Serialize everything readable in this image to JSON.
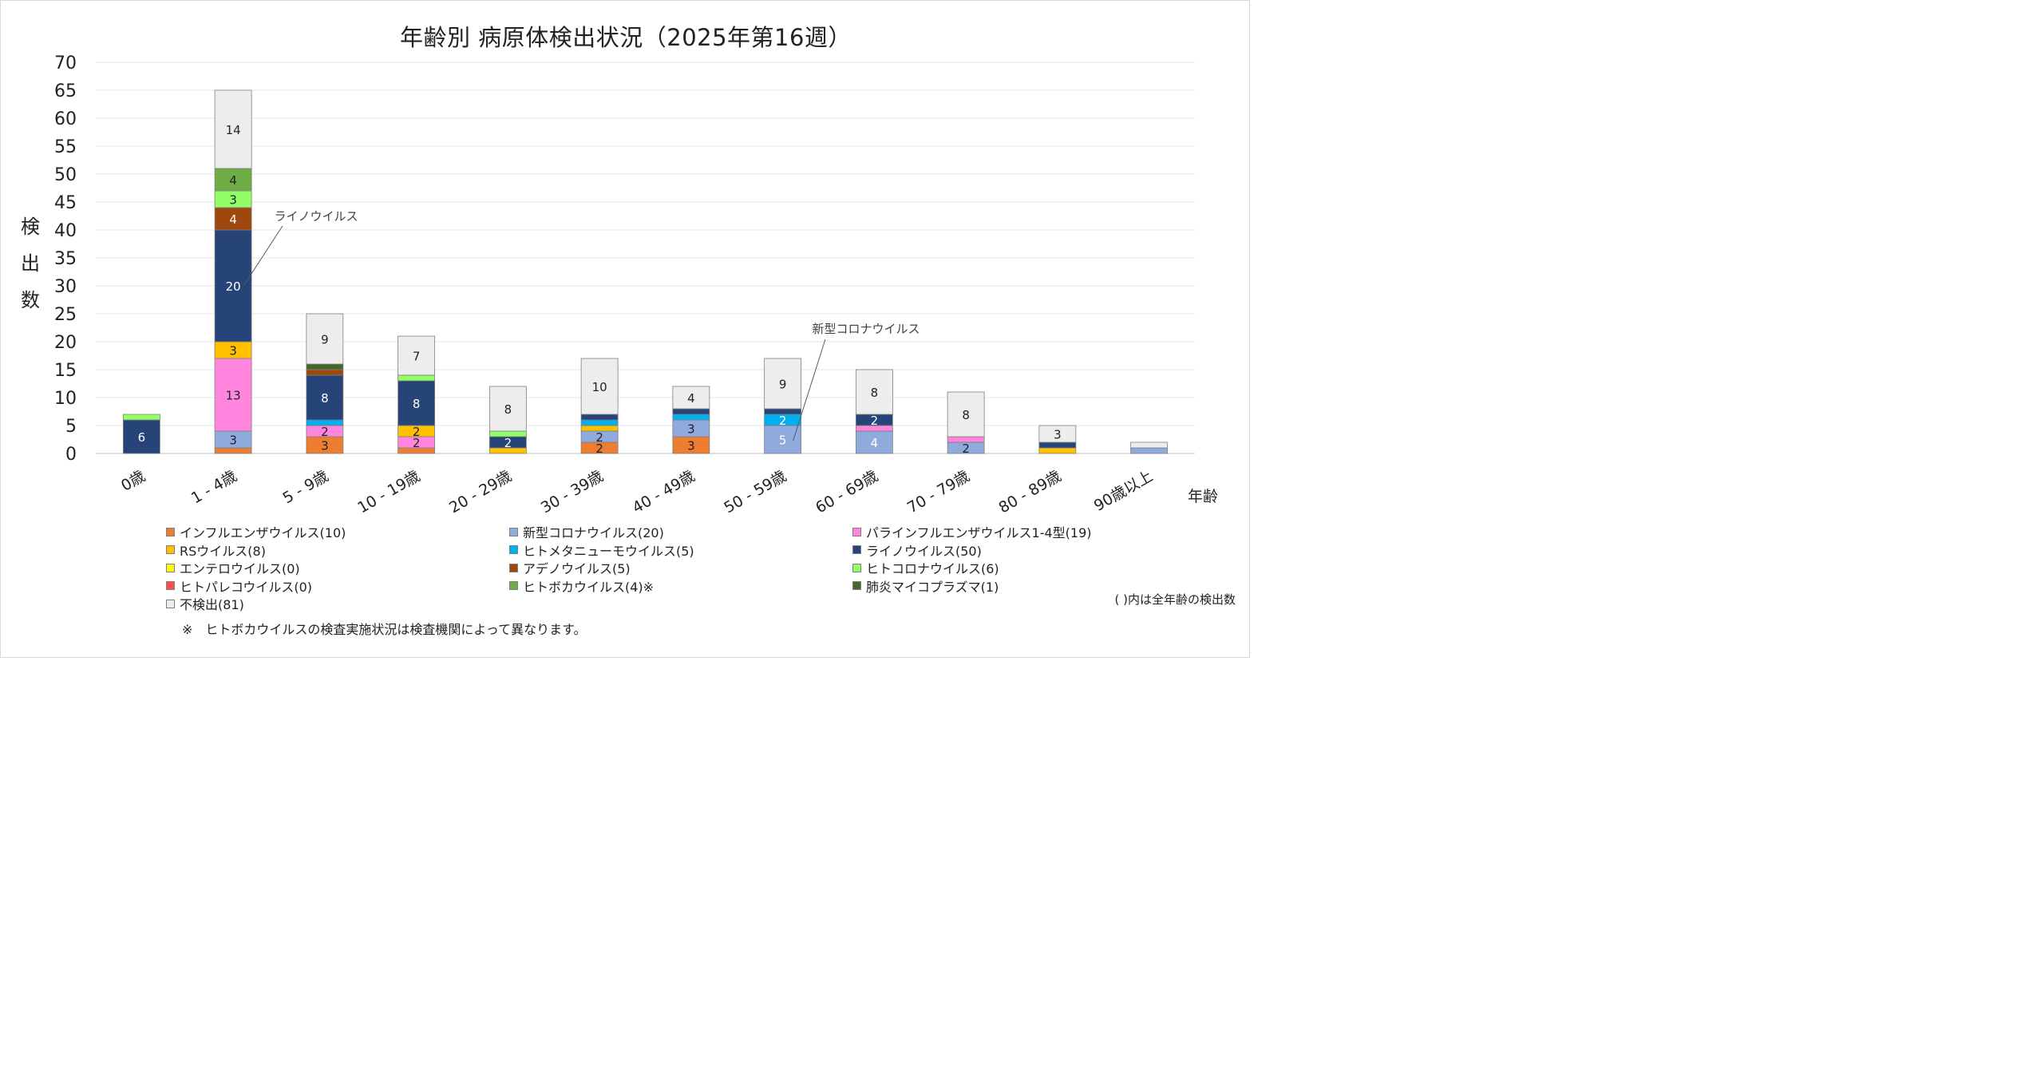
{
  "chart_data": {
    "type": "bar",
    "stacked": true,
    "title": "年齢別 病原体検出状況（2025年第16週）",
    "ylabel": "検出数",
    "xlabel": "年齢",
    "ylim": [
      0,
      70
    ],
    "ytick_step": 5,
    "grid": true,
    "legend_position": "bottom",
    "categories": [
      "0歳",
      "1 - 4歳",
      "5 - 9歳",
      "10 - 19歳",
      "20 - 29歳",
      "30 - 39歳",
      "40 - 49歳",
      "50 - 59歳",
      "60 - 69歳",
      "70 - 79歳",
      "80 - 89歳",
      "90歳以上"
    ],
    "series": [
      {
        "name": "インフルエンザウイルス(10)",
        "color": "#ED7D31",
        "values": [
          0,
          1,
          3,
          1,
          0,
          2,
          3,
          0,
          0,
          0,
          0,
          0
        ]
      },
      {
        "name": "新型コロナウイルス(20)",
        "color": "#8FAADC",
        "values": [
          0,
          3,
          0,
          0,
          0,
          2,
          3,
          5,
          4,
          2,
          0,
          1
        ]
      },
      {
        "name": "パラインフルエンザウイルス1-4型(19)",
        "color": "#FF85DE",
        "values": [
          0,
          13,
          2,
          2,
          0,
          0,
          0,
          0,
          1,
          1,
          0,
          0
        ]
      },
      {
        "name": "RSウイルス(8)",
        "color": "#FFC000",
        "values": [
          0,
          3,
          0,
          2,
          1,
          1,
          0,
          0,
          0,
          0,
          1,
          0
        ]
      },
      {
        "name": "ヒトメタニューモウイルス(5)",
        "color": "#00B0F0",
        "values": [
          0,
          0,
          1,
          0,
          0,
          1,
          1,
          2,
          0,
          0,
          0,
          0
        ]
      },
      {
        "name": "ライノウイルス(50)",
        "color": "#264478",
        "values": [
          6,
          20,
          8,
          8,
          2,
          1,
          1,
          1,
          2,
          0,
          1,
          0
        ]
      },
      {
        "name": "エンテロウイルス(0)",
        "color": "#FFFF00",
        "values": [
          0,
          0,
          0,
          0,
          0,
          0,
          0,
          0,
          0,
          0,
          0,
          0
        ]
      },
      {
        "name": "アデノウイルス(5)",
        "color": "#9E480E",
        "values": [
          0,
          4,
          1,
          0,
          0,
          0,
          0,
          0,
          0,
          0,
          0,
          0
        ]
      },
      {
        "name": "ヒトコロナウイルス(6)",
        "color": "#92FF66",
        "values": [
          1,
          3,
          0,
          1,
          1,
          0,
          0,
          0,
          0,
          0,
          0,
          0
        ]
      },
      {
        "name": "ヒトパレコウイルス(0)",
        "color": "#FF5050",
        "values": [
          0,
          0,
          0,
          0,
          0,
          0,
          0,
          0,
          0,
          0,
          0,
          0
        ]
      },
      {
        "name": "ヒトボカウイルス(4)※",
        "color": "#70AD47",
        "values": [
          0,
          4,
          0,
          0,
          0,
          0,
          0,
          0,
          0,
          0,
          0,
          0
        ]
      },
      {
        "name": "肺炎マイコプラズマ(1)",
        "color": "#43682B",
        "values": [
          0,
          0,
          1,
          0,
          0,
          0,
          0,
          0,
          0,
          0,
          0,
          0
        ]
      },
      {
        "name": "不検出(81)",
        "color": "#EDEDED",
        "values": [
          0,
          14,
          9,
          7,
          8,
          10,
          4,
          9,
          8,
          8,
          3,
          1
        ]
      }
    ],
    "data_labels": [
      {
        "series": 5,
        "category": 0,
        "text": "6",
        "color": "#ffffff"
      },
      {
        "series": 1,
        "category": 1,
        "text": "3",
        "color": "#222222"
      },
      {
        "series": 2,
        "category": 1,
        "text": "13",
        "color": "#222222"
      },
      {
        "series": 3,
        "category": 1,
        "text": "3",
        "color": "#222222"
      },
      {
        "series": 5,
        "category": 1,
        "text": "20",
        "color": "#ffffff"
      },
      {
        "series": 7,
        "category": 1,
        "text": "4",
        "color": "#ffffff"
      },
      {
        "series": 8,
        "category": 1,
        "text": "3",
        "color": "#222222"
      },
      {
        "series": 10,
        "category": 1,
        "text": "4",
        "color": "#222222"
      },
      {
        "series": 12,
        "category": 1,
        "text": "14",
        "color": "#222222"
      },
      {
        "series": 0,
        "category": 2,
        "text": "3",
        "color": "#222222"
      },
      {
        "series": 2,
        "category": 2,
        "text": "2",
        "color": "#222222"
      },
      {
        "series": 5,
        "category": 2,
        "text": "8",
        "color": "#ffffff"
      },
      {
        "series": 12,
        "category": 2,
        "text": "9",
        "color": "#222222"
      },
      {
        "series": 2,
        "category": 3,
        "text": "2",
        "color": "#222222"
      },
      {
        "series": 3,
        "category": 3,
        "text": "2",
        "color": "#222222"
      },
      {
        "series": 5,
        "category": 3,
        "text": "8",
        "color": "#ffffff"
      },
      {
        "series": 12,
        "category": 3,
        "text": "7",
        "color": "#222222"
      },
      {
        "series": 5,
        "category": 4,
        "text": "2",
        "color": "#ffffff"
      },
      {
        "series": 12,
        "category": 4,
        "text": "8",
        "color": "#222222"
      },
      {
        "series": 0,
        "category": 5,
        "text": "2",
        "color": "#222222"
      },
      {
        "series": 1,
        "category": 5,
        "text": "2",
        "color": "#222222"
      },
      {
        "series": 12,
        "category": 5,
        "text": "10",
        "color": "#222222"
      },
      {
        "series": 0,
        "category": 6,
        "text": "3",
        "color": "#222222"
      },
      {
        "series": 1,
        "category": 6,
        "text": "3",
        "color": "#222222"
      },
      {
        "series": 12,
        "category": 6,
        "text": "4",
        "color": "#222222"
      },
      {
        "series": 1,
        "category": 7,
        "text": "5",
        "color": "#ffffff"
      },
      {
        "series": 4,
        "category": 7,
        "text": "2",
        "color": "#ffffff"
      },
      {
        "series": 12,
        "category": 7,
        "text": "9",
        "color": "#222222"
      },
      {
        "series": 1,
        "category": 8,
        "text": "4",
        "color": "#ffffff"
      },
      {
        "series": 5,
        "category": 8,
        "text": "2",
        "color": "#ffffff"
      },
      {
        "series": 12,
        "category": 8,
        "text": "8",
        "color": "#222222"
      },
      {
        "series": 1,
        "category": 9,
        "text": "2",
        "color": "#222222"
      },
      {
        "series": 12,
        "category": 9,
        "text": "8",
        "color": "#222222"
      },
      {
        "series": 12,
        "category": 10,
        "text": "3",
        "color": "#222222"
      }
    ],
    "annotations": [
      {
        "text": "ライノウイルス",
        "series": 5,
        "category": 1
      },
      {
        "text": "新型コロナウイルス",
        "series": 1,
        "category": 7
      }
    ],
    "legend_note": "( )内は全年齢の検出数",
    "footnote": "※　ヒトボカウイルスの検査実施状況は検査機関によって異なります。"
  }
}
